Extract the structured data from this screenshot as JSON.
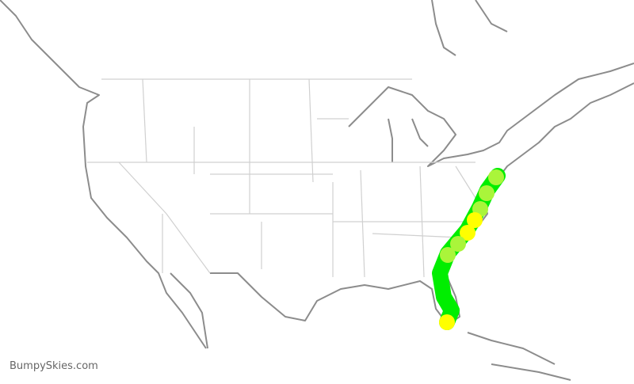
{
  "brand": {
    "label": "BumpySkies.com"
  },
  "colors": {
    "smooth": "#00ee00",
    "light": "#aaf53a",
    "moderate": "#ffff00",
    "coast": "#8c8c8c",
    "borders": "#d0d0d0"
  }
}
